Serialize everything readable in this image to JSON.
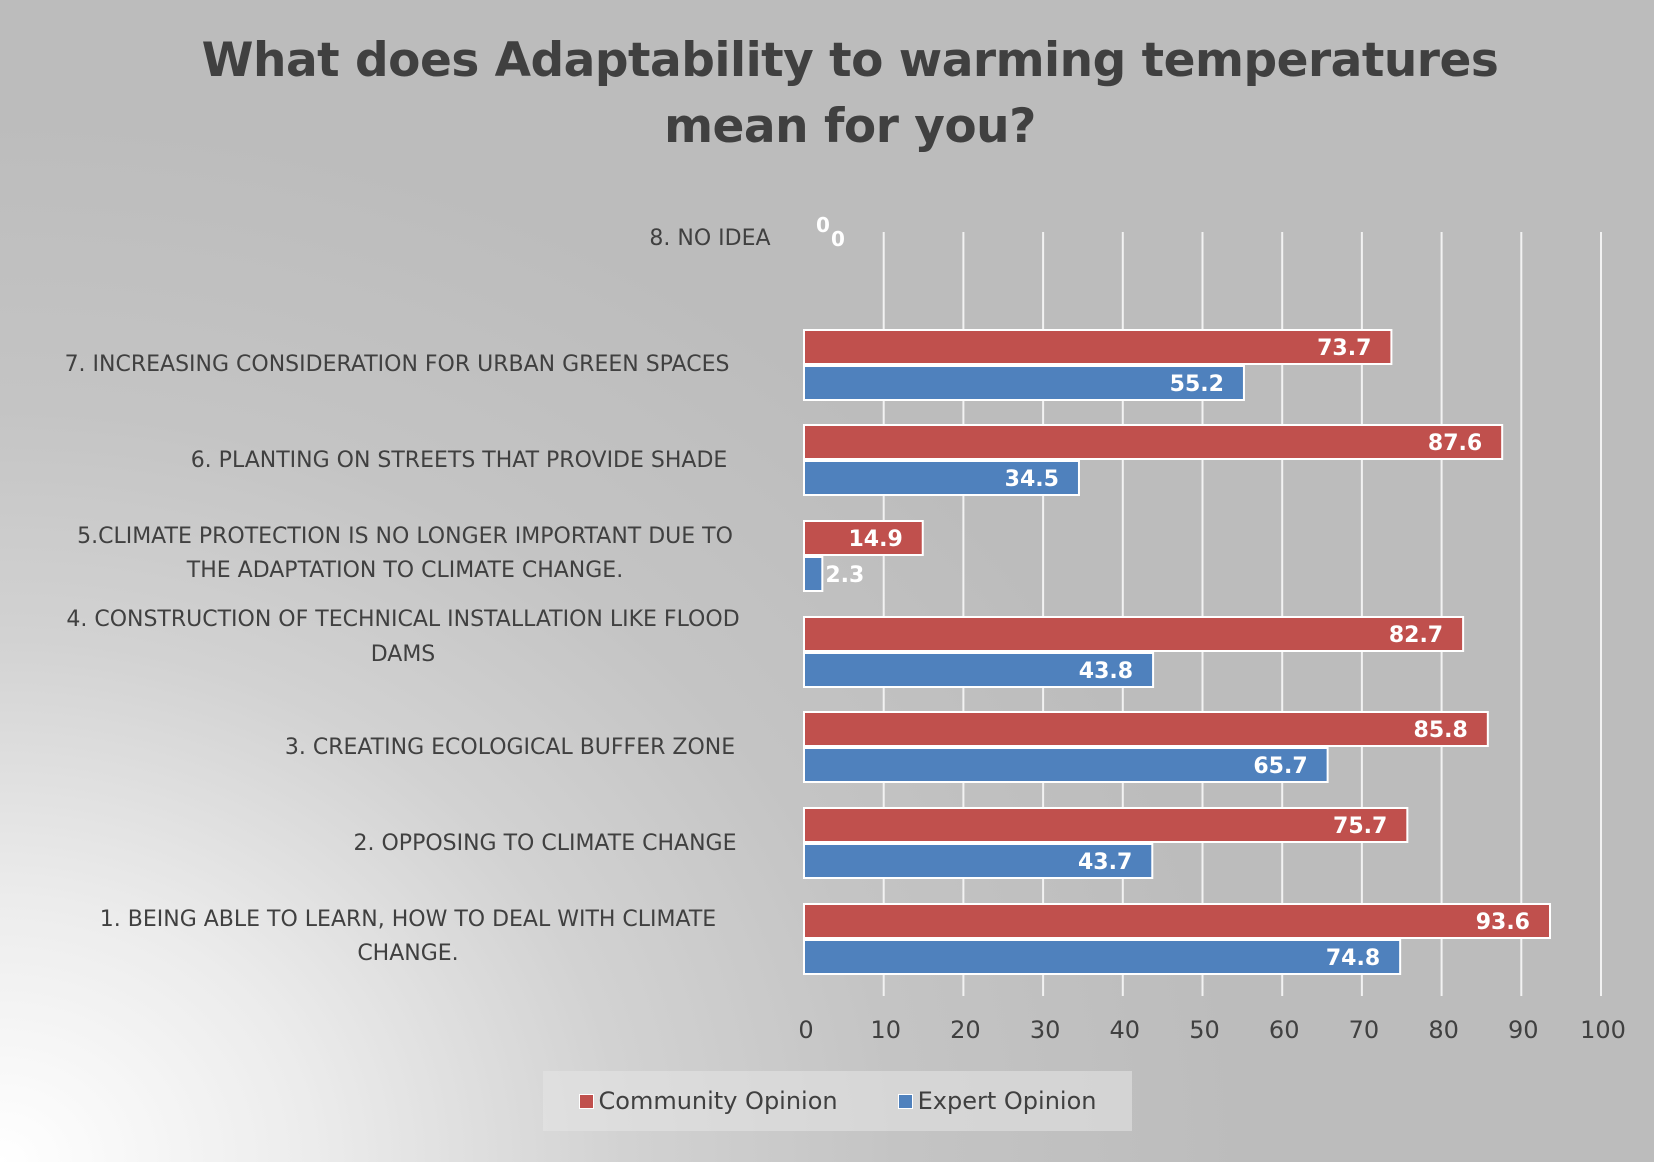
{
  "chart_data": {
    "type": "bar",
    "orientation": "horizontal",
    "title": [
      "What does Adaptability to warming temperatures",
      "mean for you?"
    ],
    "xlim": [
      0,
      100
    ],
    "x_ticks": [
      0,
      10,
      20,
      30,
      40,
      50,
      60,
      70,
      80,
      90,
      100
    ],
    "grid": true,
    "legend_position": "bottom",
    "categories": [
      [
        "8. NO IDEA"
      ],
      [
        "7. INCREASING CONSIDERATION FOR URBAN GREEN SPACES"
      ],
      [
        "6. PLANTING ON STREETS THAT PROVIDE SHADE"
      ],
      [
        "5.CLIMATE PROTECTION IS NO LONGER IMPORTANT DUE TO",
        "THE ADAPTATION TO CLIMATE CHANGE."
      ],
      [
        "4. CONSTRUCTION OF TECHNICAL INSTALLATION LIKE FLOOD",
        "DAMS"
      ],
      [
        "3. CREATING ECOLOGICAL BUFFER ZONE"
      ],
      [
        "2. OPPOSING TO CLIMATE CHANGE"
      ],
      [
        "1. BEING ABLE TO LEARN, HOW TO DEAL WITH CLIMATE",
        "CHANGE."
      ]
    ],
    "series": [
      {
        "name": "Community Opinion",
        "color": "#c0504d",
        "values": [
          0,
          73.7,
          87.6,
          14.9,
          82.7,
          85.8,
          75.7,
          93.6
        ]
      },
      {
        "name": "Expert Opinion",
        "color": "#4f81bd",
        "values": [
          0,
          55.2,
          34.5,
          2.3,
          43.8,
          65.7,
          43.7,
          74.8
        ]
      }
    ]
  }
}
